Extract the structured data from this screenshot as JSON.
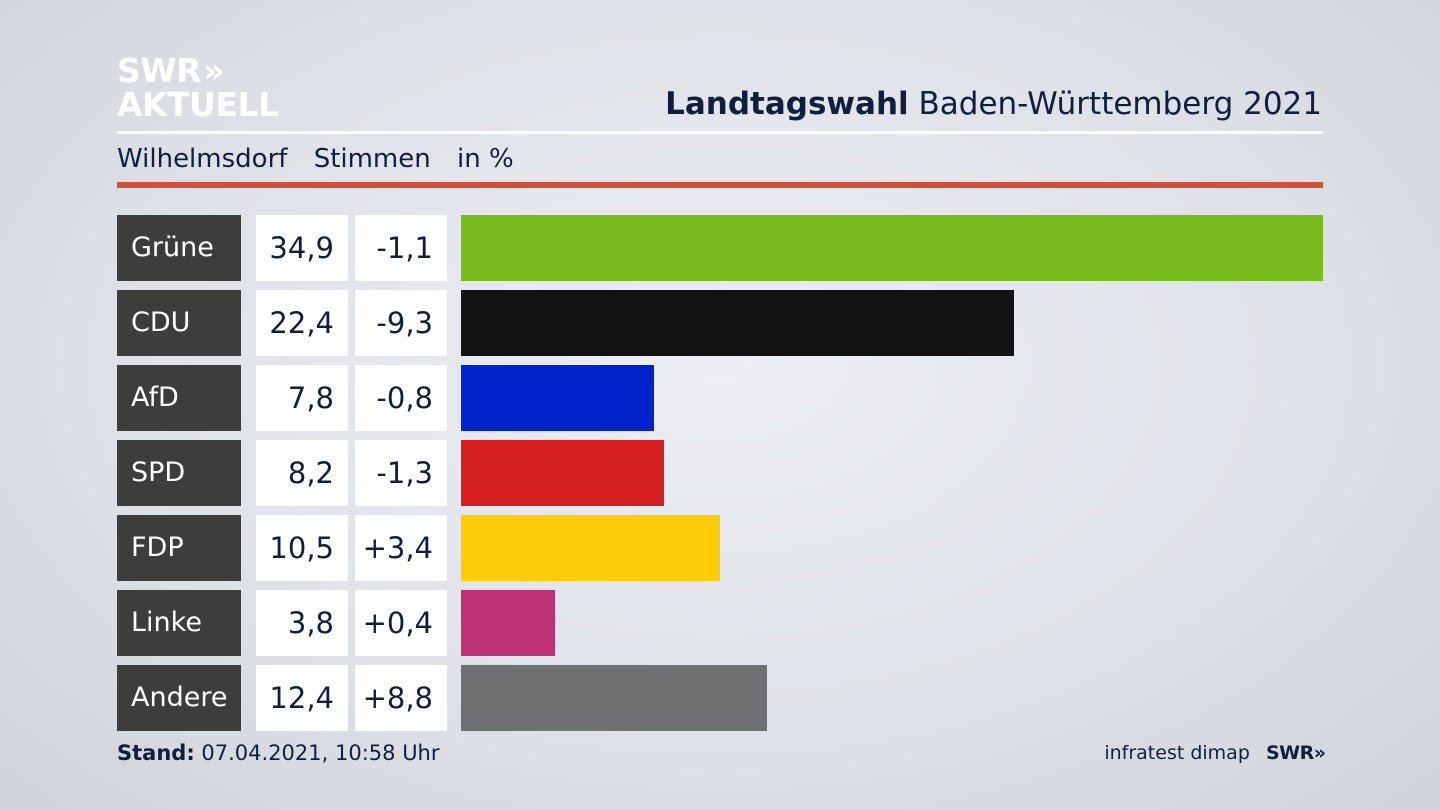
{
  "logo": {
    "line1": "SWR",
    "arrows": "»",
    "line2": "AKTUELL"
  },
  "header": {
    "title_bold": "Landtagswahl",
    "title_rest": "Baden-Württemberg 2021"
  },
  "subheader": {
    "location": "Wilhelmsdorf",
    "metric": "Stimmen",
    "unit": "in %"
  },
  "colors": {
    "accent_rule": "#d0503a"
  },
  "chart_data": {
    "type": "bar",
    "orientation": "horizontal",
    "xlim": [
      0,
      34.9
    ],
    "categories": [
      "Grüne",
      "CDU",
      "AfD",
      "SPD",
      "FDP",
      "Linke",
      "Andere"
    ],
    "values": [
      34.9,
      22.4,
      7.8,
      8.2,
      10.5,
      3.8,
      12.4
    ],
    "values_label": [
      "34,9",
      "22,4",
      "7,8",
      "8,2",
      "10,5",
      "3,8",
      "12,4"
    ],
    "diffs_label": [
      "-1,1",
      "-9,3",
      "-0,8",
      "-1,3",
      "+3,4",
      "+0,4",
      "+8,8"
    ],
    "colors": [
      "#79bc1d",
      "#121212",
      "#0022c9",
      "#d61f1f",
      "#ffcc0a",
      "#bd3274",
      "#6f7072"
    ]
  },
  "footer": {
    "stand_label": "Stand:",
    "stand_value": "07.04.2021, 10:58 Uhr",
    "source": "infratest dimap",
    "logo": "SWR",
    "logo_arrows": "»"
  }
}
